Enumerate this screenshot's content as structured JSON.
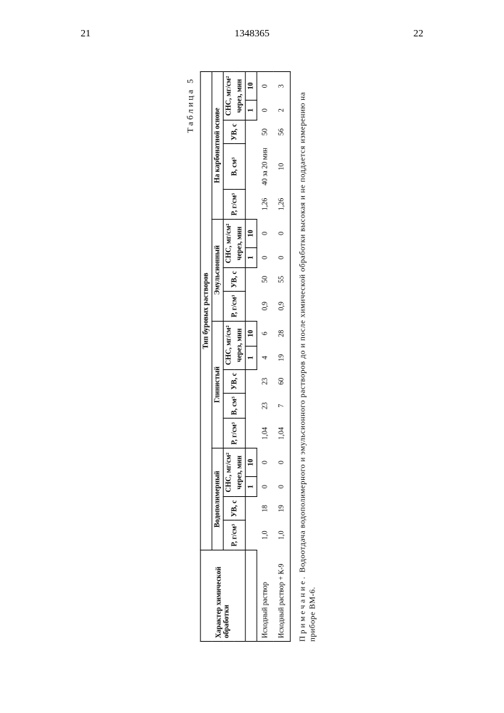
{
  "header": {
    "page_left": "21",
    "doc_number": "1348365",
    "page_right": "22"
  },
  "table": {
    "label": "Таблица 5",
    "main_header": "Тип буровых растворов",
    "row_label_header": "Характер химической обработки",
    "groups": [
      {
        "title": "Водополимерный",
        "cols": [
          "Р, г/см³",
          "УВ, с"
        ],
        "sns": "СНС, мг/см²"
      },
      {
        "title": "Глинистый",
        "cols": [
          "Р, г/см³",
          "В, см³",
          "УВ, с"
        ],
        "sns": "СНС, мг/см²"
      },
      {
        "title": "Эмульсионный",
        "cols": [
          "Р, г/см³",
          "УВ, с"
        ],
        "sns": "СНС, мг/см²"
      },
      {
        "title": "На карбонатной основе",
        "cols": [
          "Р, г/см³",
          "В, см³",
          "УВ, с"
        ],
        "sns": "СНС, мг/см²"
      }
    ],
    "sns_sub": "через, мин",
    "sns_cols": [
      "1",
      "10"
    ],
    "rows": [
      {
        "label": "Исходный раствор",
        "g1": [
          "1,0",
          "18",
          "0",
          "0"
        ],
        "g2": [
          "1,04",
          "23",
          "23",
          "4",
          "6"
        ],
        "g3": [
          "0,9",
          "50",
          "0",
          "0"
        ],
        "g4": [
          "1,26",
          "40 за 20 мин",
          "50",
          "0",
          "0"
        ]
      },
      {
        "label": "Исходный раствор + К-9",
        "g1": [
          "1,0",
          "19",
          "0",
          "0"
        ],
        "g2": [
          "1,04",
          "7",
          "60",
          "19",
          "28"
        ],
        "g3": [
          "0,9",
          "55",
          "0",
          "0"
        ],
        "g4": [
          "1,26",
          "10",
          "56",
          "2",
          "3"
        ]
      }
    ]
  },
  "note": {
    "label": "Примечание.",
    "text": "Водоотдача водополимерного и эмульсионного растворов до и после химической обработки высокая и не поддается измерению на приборе ВМ-6."
  }
}
